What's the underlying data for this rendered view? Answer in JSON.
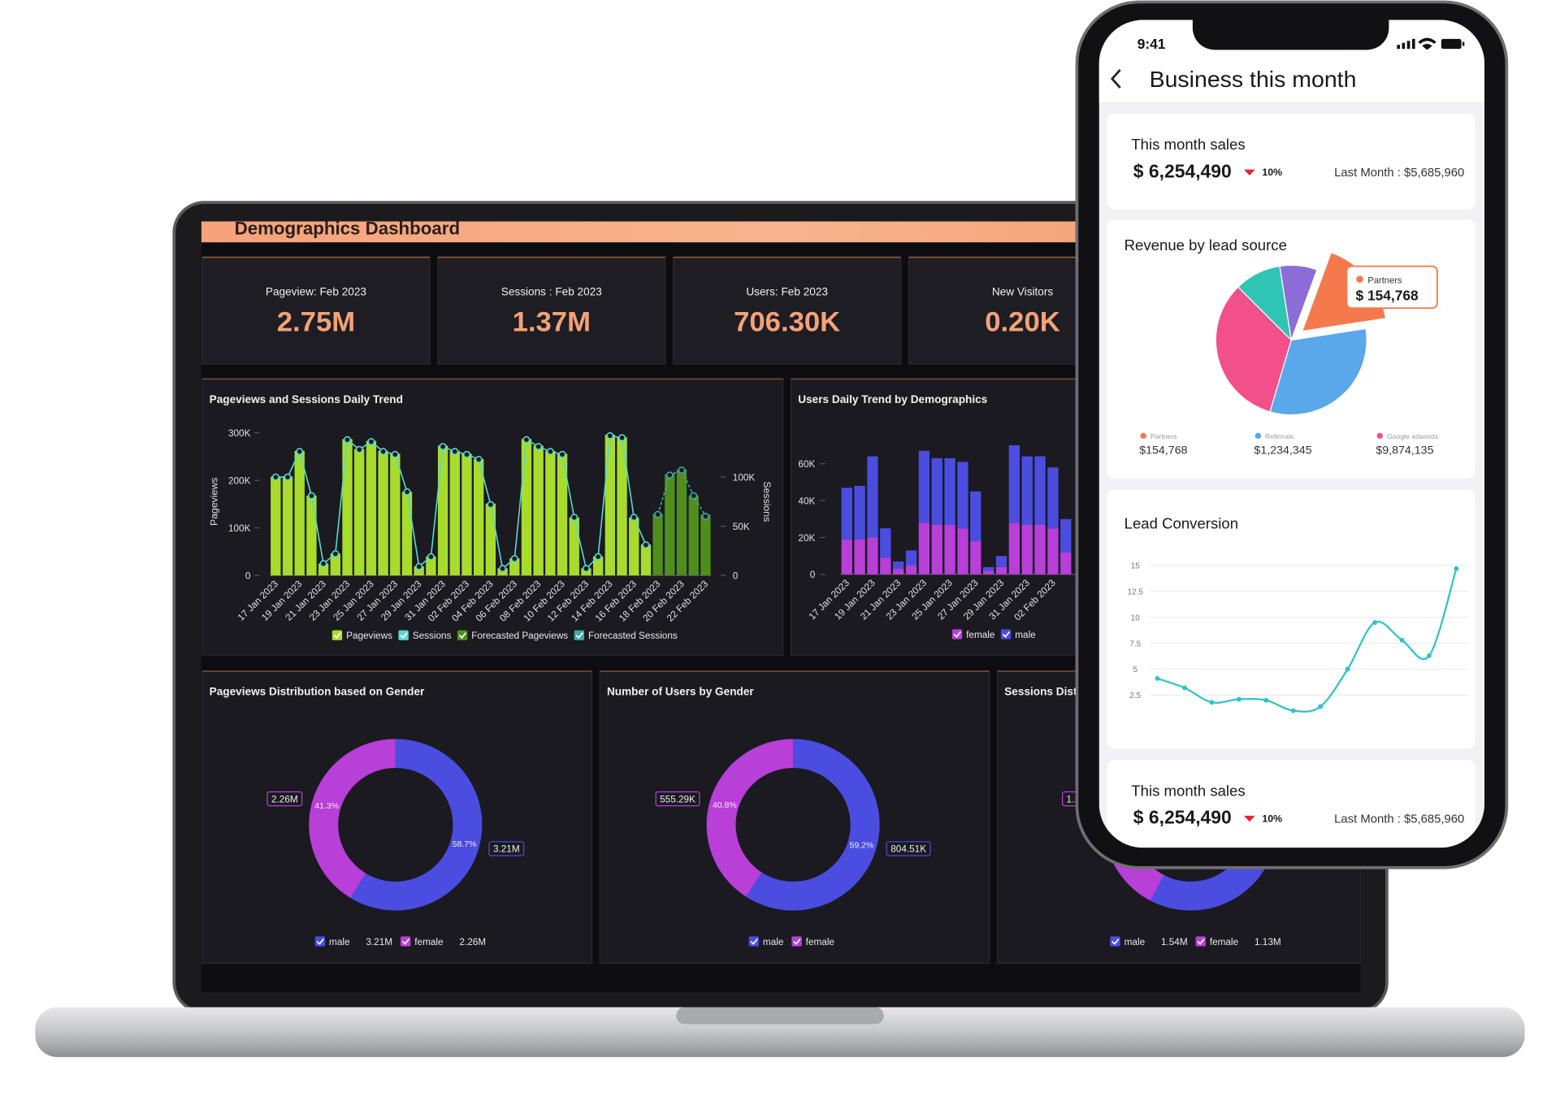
{
  "dashboard": {
    "title": "Demographics Dashboard",
    "kpis": [
      {
        "label": "Pageview: Feb 2023",
        "value": "2.75M"
      },
      {
        "label": "Sessions : Feb 2023",
        "value": "1.37M"
      },
      {
        "label": "Users: Feb 2023",
        "value": "706.30K"
      },
      {
        "label": "New Visitors",
        "value": "0.20K"
      }
    ]
  },
  "phone": {
    "time": "9:41",
    "title": "Business this month",
    "cards": [
      {
        "title": "This month sales",
        "amount": "$ 6,254,490",
        "change": "10%",
        "last_month": "Last Month : $5,685,960"
      },
      {
        "title": "This month sales",
        "amount": "$ 6,254,490",
        "change": "10%",
        "last_month": "Last Month : $5,685,960"
      }
    ],
    "callout": {
      "name": "Partners",
      "amount": "$ 154,768"
    }
  },
  "chart_data": [
    {
      "type": "bar",
      "title": "Pageviews and Sessions Daily Trend",
      "ylabel": "Pageviews",
      "y2label": "Sessions",
      "categories": [
        "17 Jan 2023",
        null,
        "19 Jan 2023",
        null,
        "21 Jan 2023",
        null,
        "23 Jan 2023",
        null,
        "25 Jan 2023",
        null,
        "27 Jan 2023",
        null,
        "29 Jan 2023",
        null,
        "31 Jan 2023",
        null,
        "02 Feb 2023",
        null,
        "04 Feb 2023",
        null,
        "06 Feb 2023",
        null,
        "08 Feb 2023",
        null,
        "10 Feb 2023",
        null,
        "12 Feb 2023",
        null,
        "14 Feb 2023",
        null,
        "16 Feb 2023",
        null,
        "18 Feb 2023",
        null,
        "20 Feb 2023",
        null,
        "22 Feb 2023"
      ],
      "series": [
        {
          "name": "Pageviews",
          "type": "bar",
          "color": "#a8dc2c",
          "values": [
            208000,
            208000,
            262000,
            168000,
            25000,
            46000,
            287000,
            266000,
            283000,
            262000,
            256000,
            176000,
            19000,
            40000,
            273000,
            262000,
            256000,
            245000,
            151000,
            15000,
            36000,
            287000,
            273000,
            262000,
            256000,
            122000,
            15000,
            40000,
            296000,
            291000,
            122000,
            65000,
            null,
            null,
            null,
            null,
            null
          ]
        },
        {
          "name": "Sessions",
          "type": "line",
          "axis": "y2",
          "color": "#56d8d2",
          "values": [
            100000,
            100000,
            126000,
            81000,
            12000,
            22000,
            138000,
            128000,
            136000,
            126000,
            123000,
            85000,
            9000,
            19000,
            131000,
            126000,
            123000,
            118000,
            72000,
            7000,
            17000,
            138000,
            131000,
            126000,
            123000,
            59000,
            7000,
            19000,
            142000,
            140000,
            59000,
            31000,
            null,
            null,
            null,
            null,
            null
          ]
        },
        {
          "name": "Forecasted Pageviews",
          "type": "bar",
          "color": "#4f8e1d",
          "values": [
            null,
            null,
            null,
            null,
            null,
            null,
            null,
            null,
            null,
            null,
            null,
            null,
            null,
            null,
            null,
            null,
            null,
            null,
            null,
            null,
            null,
            null,
            null,
            null,
            null,
            null,
            null,
            null,
            null,
            null,
            null,
            null,
            130000,
            213000,
            223000,
            168000,
            128000
          ]
        },
        {
          "name": "Forecasted Sessions",
          "type": "line",
          "axis": "y2",
          "color": "#3ea9a4",
          "values": [
            null,
            null,
            null,
            null,
            null,
            null,
            null,
            null,
            null,
            null,
            null,
            null,
            null,
            null,
            null,
            null,
            null,
            null,
            null,
            null,
            null,
            null,
            null,
            null,
            null,
            null,
            null,
            null,
            null,
            null,
            null,
            null,
            62000,
            102000,
            107000,
            81000,
            60000
          ]
        }
      ],
      "ylim": [
        0,
        300000
      ],
      "yticks": [
        0,
        {
          "value": 100000,
          "label": "100K"
        },
        {
          "value": 200000,
          "label": "200K"
        },
        {
          "value": 300000,
          "label": "300K"
        }
      ],
      "y2lim": [
        0,
        145000
      ],
      "y2ticks": [
        0,
        {
          "value": 50000,
          "label": "50K"
        },
        {
          "value": 100000,
          "label": "100K"
        }
      ]
    },
    {
      "type": "stacked-bar",
      "title": "Users Daily Trend by Demographics",
      "categories": [
        "17 Jan 2023",
        null,
        "19 Jan 2023",
        null,
        "21 Jan 2023",
        null,
        "23 Jan 2023",
        null,
        "25 Jan 2023",
        null,
        "27 Jan 2023",
        null,
        "29 Jan 2023",
        null,
        "31 Jan 2023",
        null,
        "02 Feb 2023",
        null
      ],
      "series": [
        {
          "name": "female",
          "color": "#b83fd8",
          "values": [
            19000,
            19000,
            20000,
            9000,
            3000,
            5000,
            28000,
            27000,
            27000,
            25000,
            18000,
            2000,
            4000,
            28000,
            27000,
            27000,
            25000,
            12000
          ]
        },
        {
          "name": "male",
          "color": "#4a4de0",
          "values": [
            28000,
            29000,
            44000,
            16000,
            4000,
            8000,
            39000,
            36000,
            36000,
            36000,
            27000,
            2000,
            6000,
            42000,
            37000,
            37000,
            33000,
            18000
          ]
        }
      ],
      "ylim": [
        0,
        70000
      ],
      "yticks": [
        0,
        {
          "value": 20000,
          "label": "20K"
        },
        {
          "value": 40000,
          "label": "40K"
        },
        {
          "value": 60000,
          "label": "60K"
        }
      ]
    },
    {
      "type": "donut",
      "title": "Pageviews Distribution based on Gender",
      "categories": [
        "male",
        "female"
      ],
      "colors": [
        "#4a4de0",
        "#b83fd8"
      ],
      "values": [
        3210000,
        2260000
      ],
      "value_labels": [
        "3.21M",
        "2.26M"
      ],
      "percent_labels": [
        "58.7%",
        "41.3%"
      ],
      "legend_values": true
    },
    {
      "type": "donut",
      "title": "Number of Users by Gender",
      "categories": [
        "male",
        "female"
      ],
      "colors": [
        "#4a4de0",
        "#b83fd8"
      ],
      "values": [
        804510,
        555290
      ],
      "value_labels": [
        "804.51K",
        "555.29K"
      ],
      "percent_labels": [
        "59.2%",
        "40.8%"
      ],
      "legend_values": false
    },
    {
      "type": "donut",
      "title": "Sessions Distribution based on Gender",
      "categories": [
        "male",
        "female"
      ],
      "colors": [
        "#4a4de0",
        "#b83fd8"
      ],
      "values": [
        1540000,
        1130000
      ],
      "value_labels": [
        "1.54M",
        "1.13M"
      ],
      "legend_values": true
    },
    {
      "type": "pie",
      "title": "Revenue by lead source",
      "categories": [
        "Partners",
        "Referrals",
        "Google adwords",
        null,
        null
      ],
      "colors": [
        "#f47a4e",
        "#5aa7e9",
        "#f1508b",
        "#2fc5b4",
        "#8c6dd8"
      ],
      "values": [
        17,
        32,
        33,
        10,
        8
      ],
      "amounts": [
        "$154,768",
        "$1,234,345",
        "$9,874,135",
        null,
        null
      ]
    },
    {
      "type": "line",
      "title": "Lead Conversion",
      "color": "#2ec3c7",
      "values": [
        4.1,
        3.2,
        1.8,
        2.1,
        2.0,
        1.0,
        1.4,
        5.0,
        9.5,
        7.8,
        6.3,
        14.7
      ],
      "ylim": [
        0,
        16
      ],
      "yticks": [
        2.5,
        5,
        7.5,
        10,
        12.5,
        15
      ],
      "grid": true
    }
  ]
}
